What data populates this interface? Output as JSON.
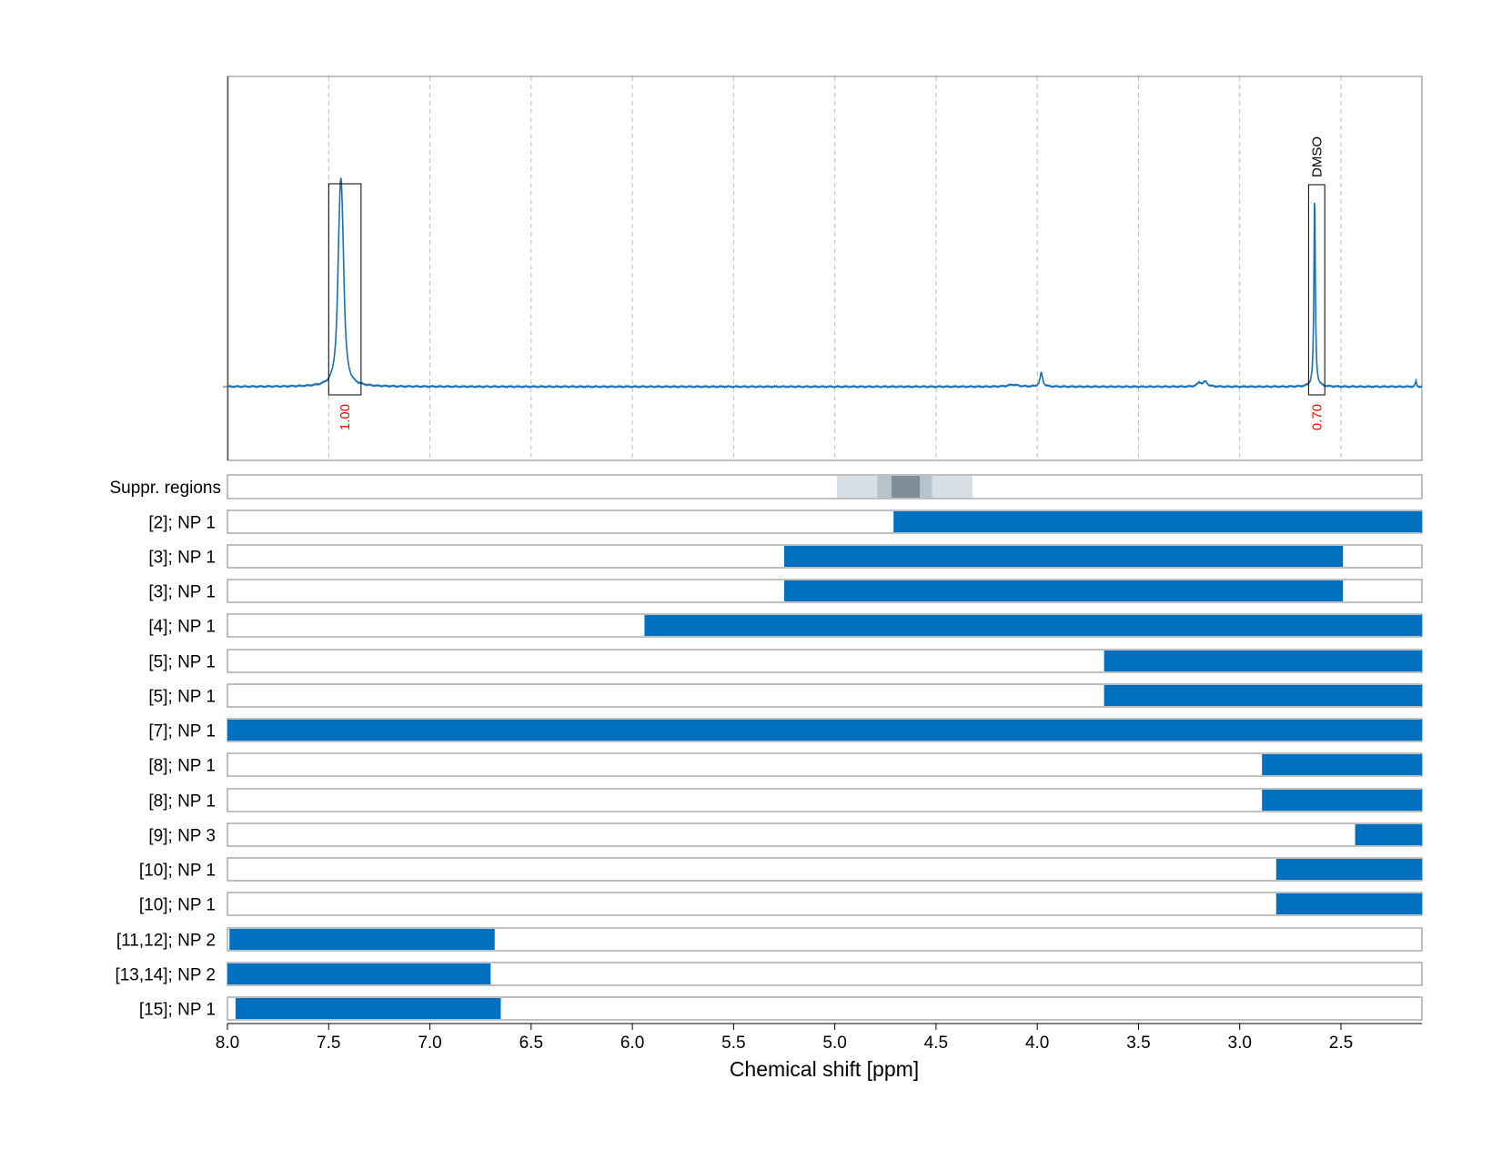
{
  "colors": {
    "spectrum": "#1a6fb5",
    "bar": "#0070c0",
    "integral": "#ff0000",
    "grid": "#bdbdbd",
    "frame": "#808080",
    "suppr_light": "#d7dfe5",
    "suppr_mid": "#b7c3cc",
    "suppr_dark": "#7f8e99"
  },
  "chart_data": {
    "type": "line",
    "xlabel": "Chemical shift [ppm]",
    "xlim": [
      8.0,
      2.1
    ],
    "xticks": [
      8.0,
      7.5,
      7.0,
      6.5,
      6.0,
      5.5,
      5.0,
      4.5,
      4.0,
      3.5,
      3.0,
      2.5
    ],
    "xtick_labels": [
      "8.0",
      "7.5",
      "7.0",
      "6.5",
      "6.0",
      "5.5",
      "5.0",
      "4.5",
      "4.0",
      "3.5",
      "3.0",
      "2.5"
    ],
    "grid": true,
    "spectrum": {
      "baseline": 0,
      "peaks": [
        {
          "center": 7.44,
          "height": 0.8,
          "width": 0.012
        },
        {
          "center": 7.45,
          "height": 0.25,
          "width": 0.01
        },
        {
          "center": 7.43,
          "height": 0.3,
          "width": 0.01
        },
        {
          "center": 3.98,
          "height": 0.07,
          "width": 0.008
        },
        {
          "center": 4.12,
          "height": 0.01,
          "width": 0.03
        },
        {
          "center": 3.17,
          "height": 0.025,
          "width": 0.012
        },
        {
          "center": 3.2,
          "height": 0.02,
          "width": 0.012
        },
        {
          "center": 2.63,
          "height": 1.0,
          "width": 0.004
        },
        {
          "center": 2.13,
          "height": 0.03,
          "width": 0.003
        }
      ]
    },
    "integration_regions": [
      {
        "from": 7.5,
        "to": 7.34,
        "integral": "1.00",
        "label": ""
      },
      {
        "from": 2.66,
        "to": 2.58,
        "integral": "0.70",
        "label": "DMSO"
      }
    ],
    "suppression": {
      "label": "Suppr. regions",
      "bands": [
        {
          "from": 4.99,
          "to": 4.32,
          "level": "light"
        },
        {
          "from": 4.79,
          "to": 4.52,
          "level": "mid"
        },
        {
          "from": 4.72,
          "to": 4.58,
          "level": "dark"
        }
      ]
    },
    "ranges": [
      {
        "label": "[2]; NP 1",
        "from": 4.71,
        "to": 2.1
      },
      {
        "label": "[3]; NP 1",
        "from": 5.25,
        "to": 2.49
      },
      {
        "label": "[3]; NP 1",
        "from": 5.25,
        "to": 2.49
      },
      {
        "label": "[4]; NP 1",
        "from": 5.94,
        "to": 2.1
      },
      {
        "label": "[5]; NP 1",
        "from": 3.67,
        "to": 2.1
      },
      {
        "label": "[5]; NP 1",
        "from": 3.67,
        "to": 2.1
      },
      {
        "label": "[7]; NP 1",
        "from": 8.0,
        "to": 2.1
      },
      {
        "label": "[8]; NP 1",
        "from": 2.89,
        "to": 2.1
      },
      {
        "label": "[8]; NP 1",
        "from": 2.89,
        "to": 2.1
      },
      {
        "label": "[9]; NP 3",
        "from": 2.43,
        "to": 2.1
      },
      {
        "label": "[10]; NP 1",
        "from": 2.82,
        "to": 2.1
      },
      {
        "label": "[10]; NP 1",
        "from": 2.82,
        "to": 2.1
      },
      {
        "label": "[11,12]; NP 2",
        "from": 7.99,
        "to": 6.68
      },
      {
        "label": "[13,14]; NP 2",
        "from": 8.0,
        "to": 6.7
      },
      {
        "label": "[15]; NP 1",
        "from": 7.96,
        "to": 6.65
      }
    ]
  }
}
